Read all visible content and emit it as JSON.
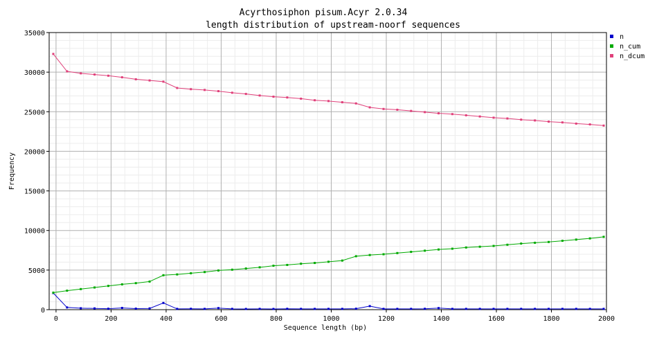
{
  "chart_data": {
    "type": "line",
    "title": "Acyrthosiphon pisum.Acyr 2.0.34",
    "subtitle": "length distribution of upstream-noorf sequences",
    "xlabel": "Sequence length (bp)",
    "ylabel": "Frequency",
    "xlim": [
      -25,
      2000
    ],
    "ylim": [
      0,
      35000
    ],
    "grid": true,
    "legend_placement": "top-right",
    "x_ticks": [
      0,
      200,
      400,
      600,
      800,
      1000,
      1200,
      1400,
      1600,
      1800,
      2000
    ],
    "y_ticks": [
      0,
      5000,
      10000,
      15000,
      20000,
      25000,
      30000,
      35000
    ],
    "x": [
      -10,
      40,
      90,
      140,
      190,
      240,
      290,
      340,
      390,
      440,
      490,
      540,
      590,
      640,
      690,
      740,
      790,
      840,
      890,
      940,
      990,
      1040,
      1090,
      1140,
      1190,
      1240,
      1290,
      1340,
      1390,
      1440,
      1490,
      1540,
      1590,
      1640,
      1690,
      1740,
      1790,
      1840,
      1890,
      1940,
      1990
    ],
    "series": [
      {
        "name": "n",
        "color": "#0000cc",
        "values": [
          2100,
          280,
          180,
          160,
          120,
          220,
          130,
          160,
          850,
          100,
          110,
          100,
          200,
          100,
          90,
          100,
          90,
          110,
          100,
          100,
          100,
          100,
          120,
          450,
          100,
          100,
          100,
          110,
          200,
          100,
          100,
          100,
          100,
          100,
          100,
          100,
          100,
          100,
          100,
          100,
          100
        ]
      },
      {
        "name": "n_cum",
        "color": "#00aa00",
        "values": [
          2150,
          2400,
          2600,
          2800,
          3000,
          3200,
          3350,
          3550,
          4350,
          4450,
          4600,
          4750,
          4950,
          5050,
          5200,
          5350,
          5550,
          5650,
          5800,
          5900,
          6050,
          6200,
          6750,
          6900,
          7000,
          7150,
          7300,
          7450,
          7600,
          7700,
          7850,
          7950,
          8050,
          8200,
          8350,
          8450,
          8550,
          8700,
          8850,
          9000,
          9200
        ]
      },
      {
        "name": "n_dcum",
        "color": "#e0407a",
        "values": [
          32300,
          30100,
          29850,
          29700,
          29550,
          29350,
          29100,
          28950,
          28800,
          28000,
          27850,
          27750,
          27600,
          27400,
          27250,
          27050,
          26900,
          26800,
          26650,
          26450,
          26350,
          26200,
          26050,
          25550,
          25350,
          25250,
          25100,
          24950,
          24800,
          24700,
          24550,
          24400,
          24250,
          24150,
          24000,
          23900,
          23750,
          23650,
          23500,
          23400,
          23250
        ]
      }
    ]
  }
}
